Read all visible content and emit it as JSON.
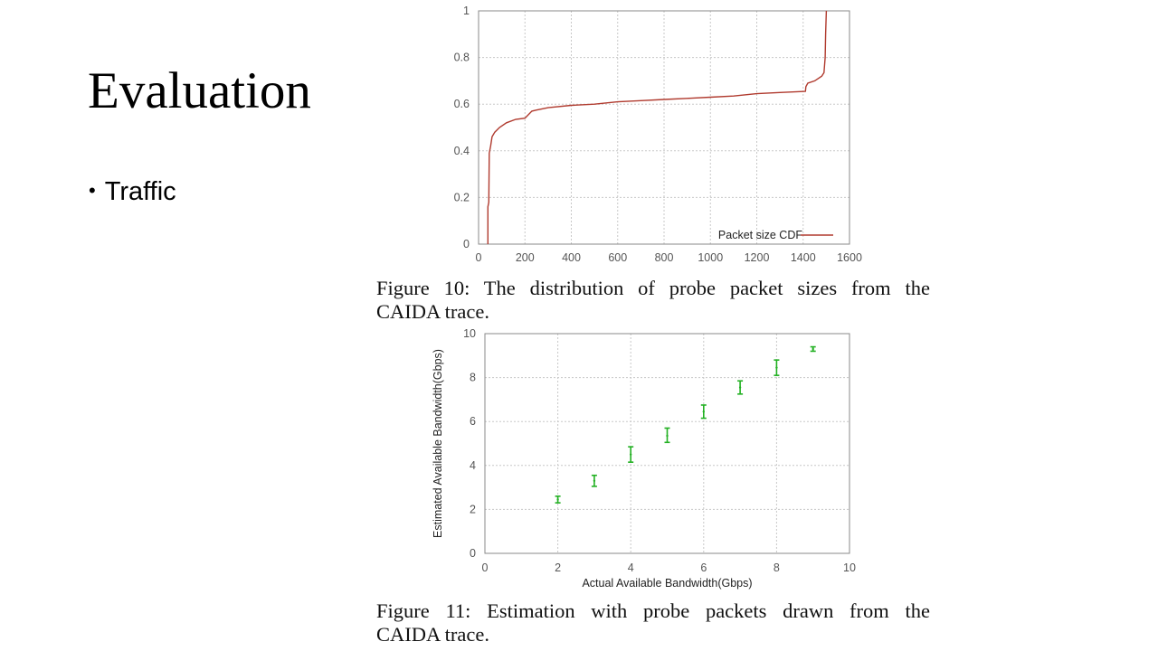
{
  "slide": {
    "title": "Evaluation",
    "bullets": [
      "Traffic"
    ]
  },
  "figures": [
    {
      "caption_line1": "Figure 10: The distribution of probe packet sizes from the",
      "caption_line2": "CAIDA trace."
    },
    {
      "caption_line1": "Figure 11: Estimation with probe packets drawn from the",
      "caption_line2": "CAIDA trace."
    }
  ],
  "chart_data": [
    {
      "type": "line",
      "title": "",
      "xlabel": "",
      "ylabel": "",
      "xlim": [
        0,
        1600
      ],
      "ylim": [
        0,
        1
      ],
      "x_ticks": [
        0,
        200,
        400,
        600,
        800,
        1000,
        1200,
        1400,
        1600
      ],
      "y_ticks": [
        0,
        0.2,
        0.4,
        0.6,
        0.8,
        1
      ],
      "grid": true,
      "legend_position": "bottom-right",
      "series_color": "#b03a2e",
      "series": [
        {
          "name": "Packet size CDF",
          "points": [
            [
              40,
              0
            ],
            [
              40,
              0.16
            ],
            [
              44,
              0.18
            ],
            [
              46,
              0.39
            ],
            [
              52,
              0.42
            ],
            [
              58,
              0.46
            ],
            [
              70,
              0.48
            ],
            [
              90,
              0.5
            ],
            [
              120,
              0.52
            ],
            [
              160,
              0.535
            ],
            [
              200,
              0.54
            ],
            [
              230,
              0.57
            ],
            [
              250,
              0.575
            ],
            [
              300,
              0.585
            ],
            [
              400,
              0.595
            ],
            [
              500,
              0.6
            ],
            [
              600,
              0.61
            ],
            [
              700,
              0.615
            ],
            [
              800,
              0.62
            ],
            [
              900,
              0.625
            ],
            [
              1000,
              0.63
            ],
            [
              1100,
              0.635
            ],
            [
              1200,
              0.645
            ],
            [
              1300,
              0.65
            ],
            [
              1410,
              0.655
            ],
            [
              1412,
              0.675
            ],
            [
              1420,
              0.69
            ],
            [
              1450,
              0.7
            ],
            [
              1480,
              0.72
            ],
            [
              1490,
              0.735
            ],
            [
              1495,
              0.8
            ],
            [
              1497,
              0.9
            ],
            [
              1500,
              1.0
            ]
          ]
        }
      ]
    },
    {
      "type": "scatter",
      "title": "",
      "xlabel": "Actual Available Bandwidth(Gbps)",
      "ylabel": "Estimated Available Bandwidth(Gbps)",
      "xlim": [
        0,
        10
      ],
      "ylim": [
        0,
        10
      ],
      "x_ticks": [
        0,
        2,
        4,
        6,
        8,
        10
      ],
      "y_ticks": [
        0,
        2,
        4,
        6,
        8,
        10
      ],
      "grid": true,
      "series_color": "#22b022",
      "series": [
        {
          "points": [
            {
              "x": 2,
              "y": 2.45,
              "low": 2.3,
              "high": 2.6
            },
            {
              "x": 3,
              "y": 3.3,
              "low": 3.05,
              "high": 3.55
            },
            {
              "x": 4,
              "y": 4.5,
              "low": 4.15,
              "high": 4.85
            },
            {
              "x": 5,
              "y": 5.35,
              "low": 5.05,
              "high": 5.7
            },
            {
              "x": 6,
              "y": 6.45,
              "low": 6.15,
              "high": 6.75
            },
            {
              "x": 7,
              "y": 7.55,
              "low": 7.25,
              "high": 7.85
            },
            {
              "x": 8,
              "y": 8.45,
              "low": 8.1,
              "high": 8.8
            },
            {
              "x": 9,
              "y": 9.3,
              "low": 9.2,
              "high": 9.4
            }
          ]
        }
      ]
    }
  ]
}
